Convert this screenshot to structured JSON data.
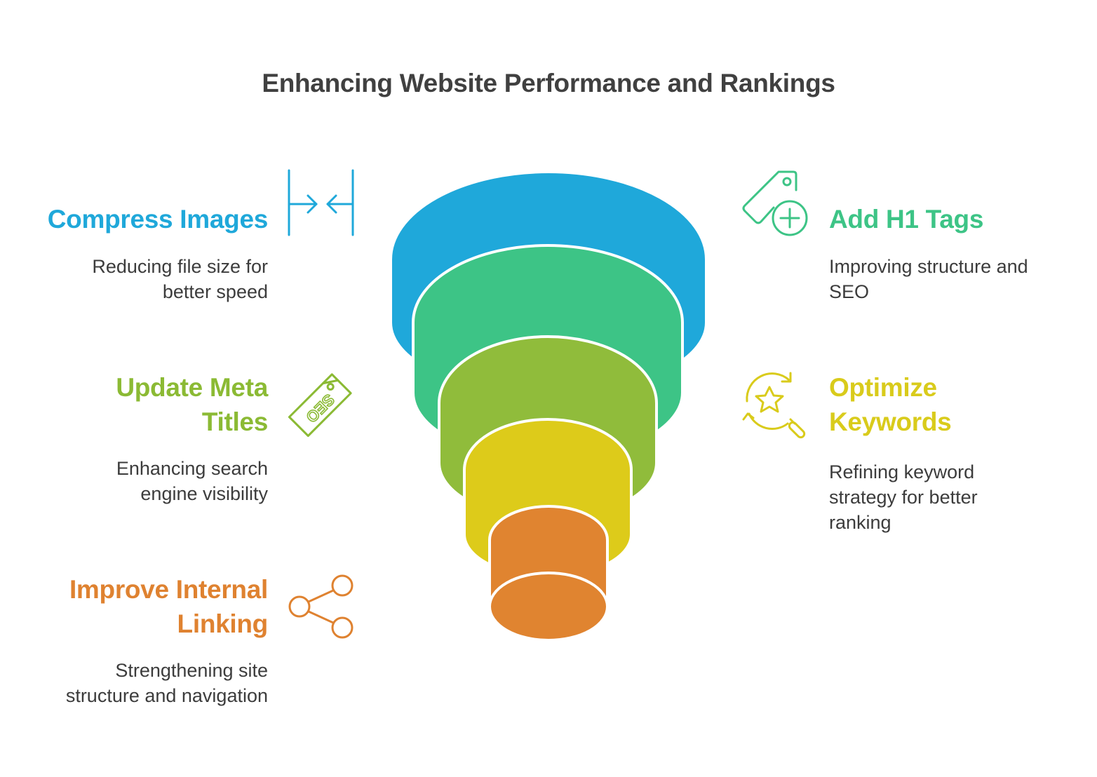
{
  "title": "Enhancing Website Performance and Rankings",
  "colors": {
    "blue": "#1FA8DA",
    "green": "#3DC486",
    "lime": "#90BC3B",
    "yellow": "#DDCB1A",
    "orange": "#E08430",
    "blue_text": "#1FA8DA",
    "green_text": "#3DC486",
    "lime_text": "#8BBA34",
    "yellow_text": "#D9CB1B",
    "orange_text": "#DF8230"
  },
  "items": {
    "compress": {
      "heading": "Compress Images",
      "desc_line1": "Reducing file size for",
      "desc_line2": "better speed",
      "icon": "compress-arrows-icon"
    },
    "h1": {
      "heading": "Add H1 Tags",
      "desc_line1": "Improving structure and",
      "desc_line2": "SEO",
      "icon": "tag-plus-icon"
    },
    "meta": {
      "heading_line1": "Update Meta",
      "heading_line2": "Titles",
      "desc_line1": "Enhancing search",
      "desc_line2": "engine visibility",
      "icon": "seo-tag-icon"
    },
    "keywords": {
      "heading_line1": "Optimize",
      "heading_line2": "Keywords",
      "desc_line1": "Refining keyword",
      "desc_line2": "strategy for better",
      "desc_line3": "ranking",
      "icon": "star-search-icon"
    },
    "linking": {
      "heading_line1": "Improve Internal",
      "heading_line2": "Linking",
      "desc_line1": "Strengthening site",
      "desc_line2": "structure and navigation",
      "icon": "share-nodes-icon"
    }
  }
}
